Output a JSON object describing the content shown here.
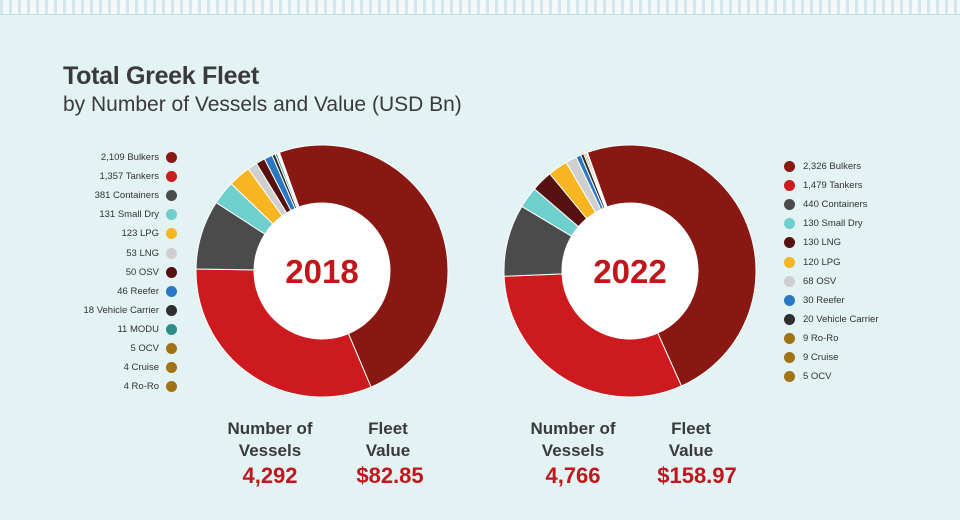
{
  "title": "Total Greek Fleet",
  "subtitle": "by Number of Vessels and Value (USD Bn)",
  "chart_data": [
    {
      "type": "pie",
      "year": "2018",
      "center_label": "2018",
      "categories": [
        "Bulkers",
        "Tankers",
        "Containers",
        "Small Dry",
        "LPG",
        "LNG",
        "OSV",
        "Reefer",
        "Vehicle Carrier",
        "MODU",
        "OCV",
        "Cruise",
        "Ro-Ro"
      ],
      "values": [
        2109,
        1357,
        381,
        131,
        123,
        53,
        50,
        46,
        18,
        11,
        5,
        4,
        4
      ],
      "legend_labels": [
        "2,109 Bulkers",
        "1,357 Tankers",
        "381 Containers",
        "131 Small Dry",
        "123 LPG",
        "53 LNG",
        "50 OSV",
        "46 Reefer",
        "18 Vehicle Carrier",
        "11 MODU",
        "5 OCV",
        "4 Cruise",
        "4 Ro-Ro"
      ],
      "colors": [
        "#8a1812",
        "#cc1a1f",
        "#4b4b4b",
        "#6ecfcd",
        "#f6b521",
        "#cfcfcf",
        "#571010",
        "#2a78c4",
        "#2e2e2e",
        "#2e8f8a",
        "#a07317",
        "#a07317",
        "#a07317"
      ],
      "total_vessels_label": "Number of Vessels",
      "total_vessels": "4,292",
      "fleet_value_label": "Fleet Value",
      "fleet_value": "$82.85"
    },
    {
      "type": "pie",
      "year": "2022",
      "center_label": "2022",
      "categories": [
        "Bulkers",
        "Tankers",
        "Containers",
        "Small Dry",
        "LNG",
        "LPG",
        "OSV",
        "Reefer",
        "Vehicle Carrier",
        "Ro-Ro",
        "Cruise",
        "OCV"
      ],
      "values": [
        2326,
        1479,
        440,
        130,
        130,
        120,
        68,
        30,
        20,
        9,
        9,
        5
      ],
      "legend_labels": [
        "2,326 Bulkers",
        "1,479 Tankers",
        "440 Containers",
        "130 Small Dry",
        "130 LNG",
        "120 LPG",
        "68 OSV",
        "30 Reefer",
        "20 Vehicle Carrier",
        "9 Ro-Ro",
        "9 Cruise",
        "5 OCV"
      ],
      "colors": [
        "#8a1812",
        "#cc1a1f",
        "#4b4b4b",
        "#6ecfcd",
        "#571010",
        "#f6b521",
        "#cfcfcf",
        "#2a78c4",
        "#2e2e2e",
        "#a07317",
        "#a07317",
        "#a07317"
      ],
      "total_vessels_label": "Number of Vessels",
      "total_vessels": "4,766",
      "fleet_value_label": "Fleet Value",
      "fleet_value": "$158.97"
    }
  ]
}
